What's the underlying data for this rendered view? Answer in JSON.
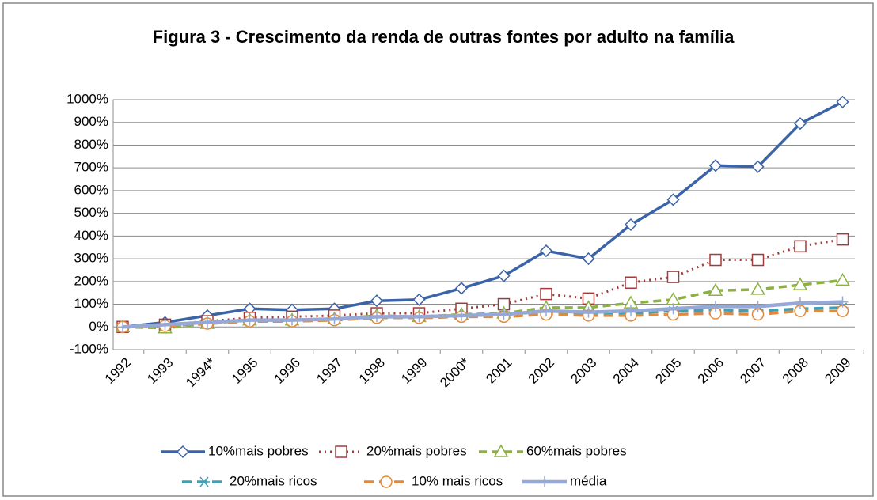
{
  "chart_data": {
    "type": "line",
    "title": "Figura 3 - Crescimento da renda de outras fontes por adulto na família",
    "categories": [
      "1992",
      "1993",
      "1994*",
      "1995",
      "1996",
      "1997",
      "1998",
      "1999",
      "2000*",
      "2001",
      "2002",
      "2003",
      "2004",
      "2005",
      "2006",
      "2007",
      "2008",
      "2009"
    ],
    "ylim": [
      -100,
      1000
    ],
    "yticks": [
      {
        "value": -100,
        "label": "-100%"
      },
      {
        "value": 0,
        "label": "0%"
      },
      {
        "value": 100,
        "label": "100%"
      },
      {
        "value": 200,
        "label": "200%"
      },
      {
        "value": 300,
        "label": "300%"
      },
      {
        "value": 400,
        "label": "400%"
      },
      {
        "value": 500,
        "label": "500%"
      },
      {
        "value": 600,
        "label": "600%"
      },
      {
        "value": 700,
        "label": "700%"
      },
      {
        "value": 800,
        "label": "800%"
      },
      {
        "value": 900,
        "label": "900%"
      },
      {
        "value": 1000,
        "label": "1000%"
      }
    ],
    "grid": true,
    "legend": "bottom",
    "series": [
      {
        "name": "10%mais pobres",
        "color": "#3a63a8",
        "values": [
          0,
          20,
          50,
          80,
          75,
          80,
          115,
          120,
          170,
          225,
          335,
          300,
          450,
          560,
          710,
          705,
          895,
          990
        ]
      },
      {
        "name": "20%mais pobres",
        "color": "#a33a3a",
        "values": [
          0,
          10,
          25,
          40,
          45,
          50,
          60,
          60,
          80,
          100,
          145,
          125,
          195,
          220,
          295,
          295,
          355,
          385
        ]
      },
      {
        "name": "60%mais pobres",
        "color": "#8db043",
        "values": [
          0,
          -5,
          15,
          30,
          30,
          35,
          50,
          45,
          55,
          60,
          85,
          85,
          105,
          120,
          160,
          165,
          185,
          205
        ]
      },
      {
        "name": "20%mais ricos",
        "color": "#3fa0b5",
        "values": [
          0,
          5,
          15,
          25,
          25,
          30,
          40,
          40,
          45,
          50,
          60,
          55,
          60,
          70,
          75,
          70,
          80,
          85
        ]
      },
      {
        "name": "10% mais ricos",
        "color": "#e28a3a",
        "values": [
          0,
          5,
          15,
          25,
          25,
          30,
          40,
          40,
          45,
          45,
          55,
          50,
          50,
          55,
          60,
          55,
          70,
          70
        ]
      },
      {
        "name": "média",
        "color": "#96a8d6",
        "values": [
          0,
          10,
          20,
          30,
          30,
          35,
          45,
          45,
          50,
          55,
          70,
          65,
          70,
          80,
          90,
          90,
          105,
          110
        ]
      }
    ]
  }
}
